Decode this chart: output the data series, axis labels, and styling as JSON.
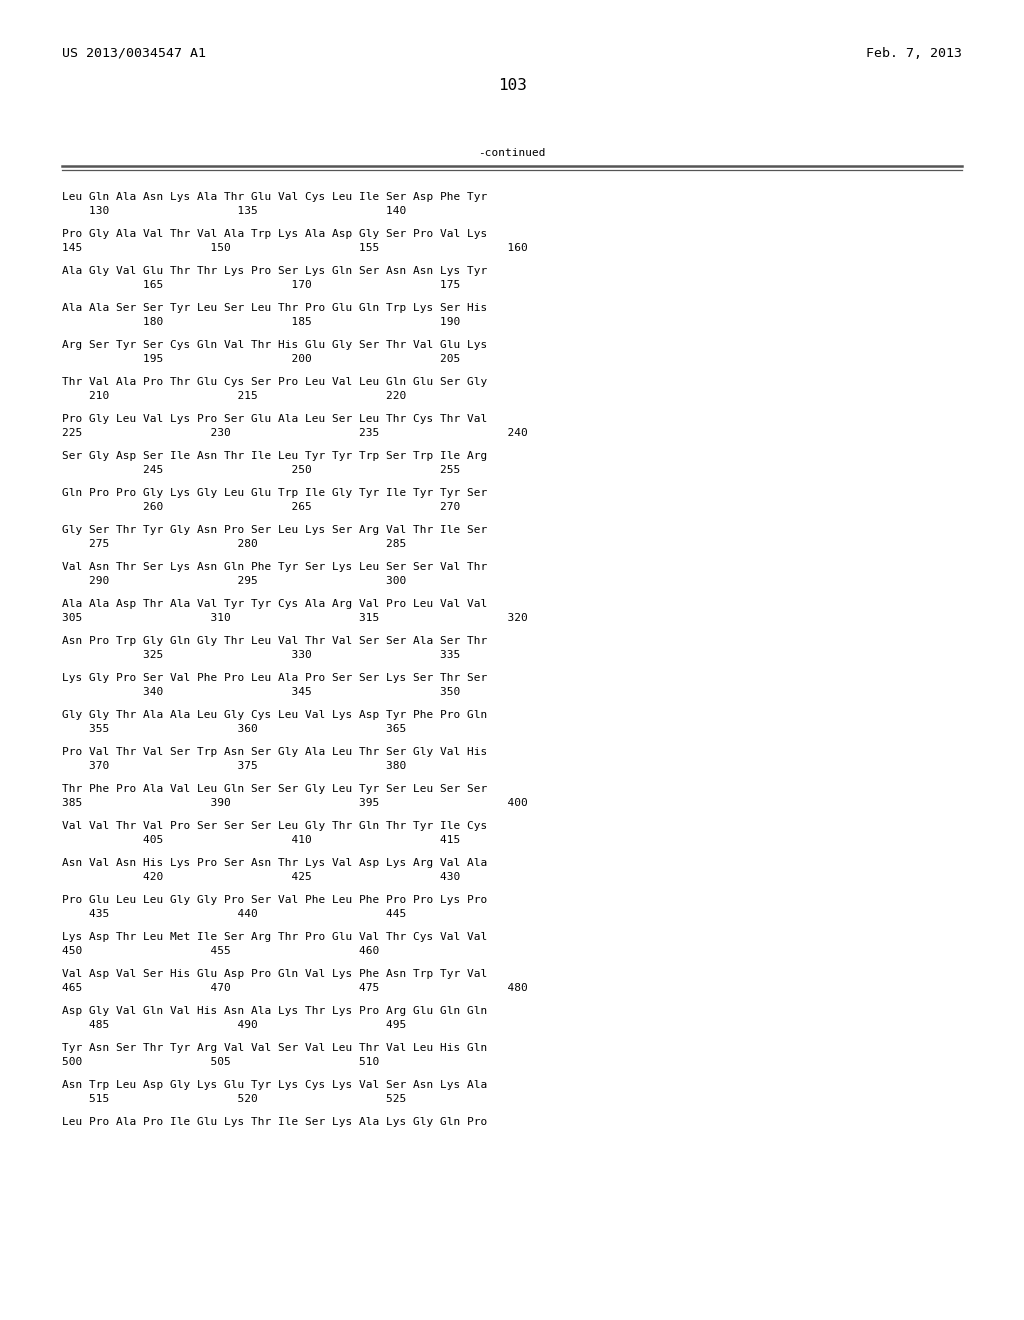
{
  "header_left": "US 2013/0034547 A1",
  "header_right": "Feb. 7, 2013",
  "page_number": "103",
  "continued_label": "-continued",
  "background_color": "#ffffff",
  "text_color": "#000000",
  "font_size": 8.0,
  "header_font_size": 9.5,
  "page_num_font_size": 11.5,
  "lines": [
    {
      "seq": "Leu Gln Ala Asn Lys Ala Thr Glu Val Cys Leu Ile Ser Asp Phe Tyr",
      "nums": "    130                   135                   140"
    },
    {
      "seq": "Pro Gly Ala Val Thr Val Ala Trp Lys Ala Asp Gly Ser Pro Val Lys",
      "nums": "145                   150                   155                   160"
    },
    {
      "seq": "Ala Gly Val Glu Thr Thr Lys Pro Ser Lys Gln Ser Asn Asn Lys Tyr",
      "nums": "            165                   170                   175"
    },
    {
      "seq": "Ala Ala Ser Ser Tyr Leu Ser Leu Thr Pro Glu Gln Trp Lys Ser His",
      "nums": "            180                   185                   190"
    },
    {
      "seq": "Arg Ser Tyr Ser Cys Gln Val Thr His Glu Gly Ser Thr Val Glu Lys",
      "nums": "            195                   200                   205"
    },
    {
      "seq": "Thr Val Ala Pro Thr Glu Cys Ser Pro Leu Val Leu Gln Glu Ser Gly",
      "nums": "    210                   215                   220"
    },
    {
      "seq": "Pro Gly Leu Val Lys Pro Ser Glu Ala Leu Ser Leu Thr Cys Thr Val",
      "nums": "225                   230                   235                   240"
    },
    {
      "seq": "Ser Gly Asp Ser Ile Asn Thr Ile Leu Tyr Tyr Trp Ser Trp Ile Arg",
      "nums": "            245                   250                   255"
    },
    {
      "seq": "Gln Pro Pro Gly Lys Gly Leu Glu Trp Ile Gly Tyr Ile Tyr Tyr Ser",
      "nums": "            260                   265                   270"
    },
    {
      "seq": "Gly Ser Thr Tyr Gly Asn Pro Ser Leu Lys Ser Arg Val Thr Ile Ser",
      "nums": "    275                   280                   285"
    },
    {
      "seq": "Val Asn Thr Ser Lys Asn Gln Phe Tyr Ser Lys Leu Ser Ser Val Thr",
      "nums": "    290                   295                   300"
    },
    {
      "seq": "Ala Ala Asp Thr Ala Val Tyr Tyr Cys Ala Arg Val Pro Leu Val Val",
      "nums": "305                   310                   315                   320"
    },
    {
      "seq": "Asn Pro Trp Gly Gln Gly Thr Leu Val Thr Val Ser Ser Ala Ser Thr",
      "nums": "            325                   330                   335"
    },
    {
      "seq": "Lys Gly Pro Ser Val Phe Pro Leu Ala Pro Ser Ser Lys Ser Thr Ser",
      "nums": "            340                   345                   350"
    },
    {
      "seq": "Gly Gly Thr Ala Ala Leu Gly Cys Leu Val Lys Asp Tyr Phe Pro Gln",
      "nums": "    355                   360                   365"
    },
    {
      "seq": "Pro Val Thr Val Ser Trp Asn Ser Gly Ala Leu Thr Ser Gly Val His",
      "nums": "    370                   375                   380"
    },
    {
      "seq": "Thr Phe Pro Ala Val Leu Gln Ser Ser Gly Leu Tyr Ser Leu Ser Ser",
      "nums": "385                   390                   395                   400"
    },
    {
      "seq": "Val Val Thr Val Pro Ser Ser Ser Leu Gly Thr Gln Thr Tyr Ile Cys",
      "nums": "            405                   410                   415"
    },
    {
      "seq": "Asn Val Asn His Lys Pro Ser Asn Thr Lys Val Asp Lys Arg Val Ala",
      "nums": "            420                   425                   430"
    },
    {
      "seq": "Pro Glu Leu Leu Gly Gly Pro Ser Val Phe Leu Phe Pro Pro Lys Pro",
      "nums": "    435                   440                   445"
    },
    {
      "seq": "Lys Asp Thr Leu Met Ile Ser Arg Thr Pro Glu Val Thr Cys Val Val",
      "nums": "450                   455                   460"
    },
    {
      "seq": "Val Asp Val Ser His Glu Asp Pro Gln Val Lys Phe Asn Trp Tyr Val",
      "nums": "465                   470                   475                   480"
    },
    {
      "seq": "Asp Gly Val Gln Val His Asn Ala Lys Thr Lys Pro Arg Glu Gln Gln",
      "nums": "    485                   490                   495"
    },
    {
      "seq": "Tyr Asn Ser Thr Tyr Arg Val Val Ser Val Leu Thr Val Leu His Gln",
      "nums": "500                   505                   510"
    },
    {
      "seq": "Asn Trp Leu Asp Gly Lys Glu Tyr Lys Cys Lys Val Ser Asn Lys Ala",
      "nums": "    515                   520                   525"
    },
    {
      "seq": "Leu Pro Ala Pro Ile Glu Lys Thr Ile Ser Lys Ala Lys Gly Gln Pro",
      "nums": ""
    }
  ]
}
